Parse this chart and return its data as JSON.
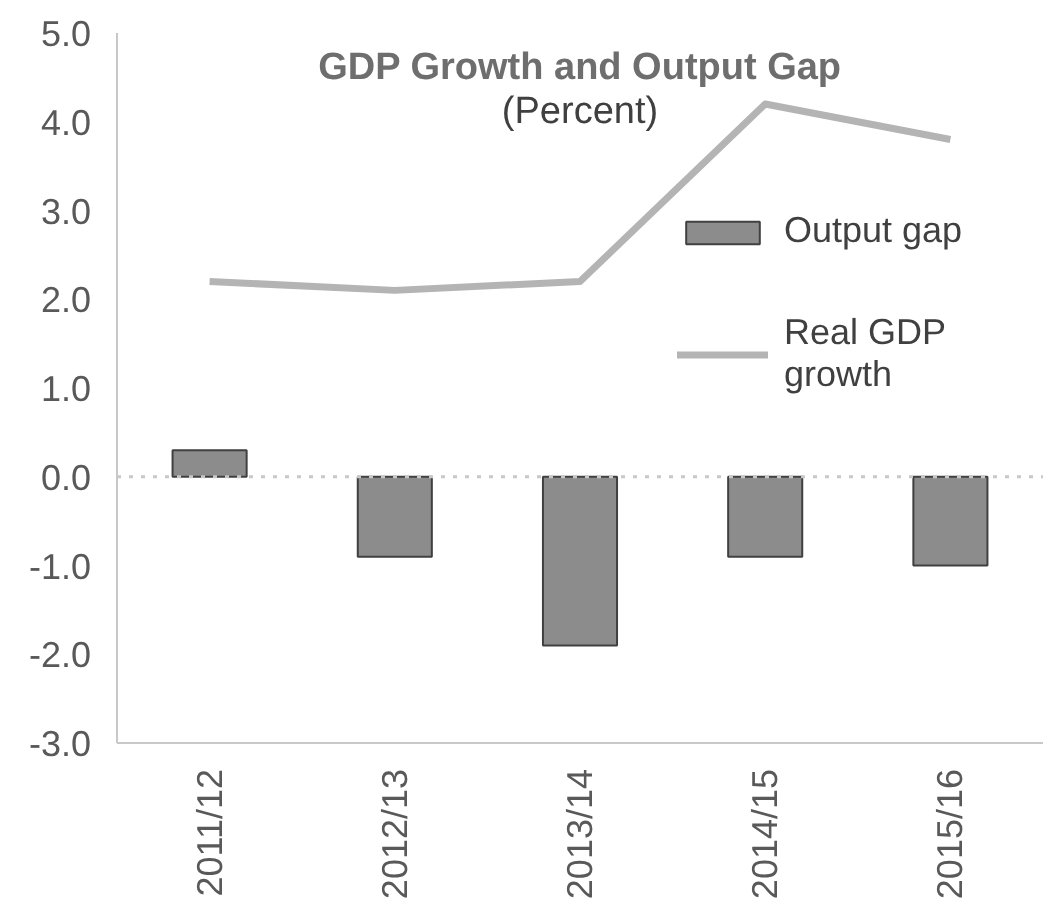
{
  "chart_data": {
    "type": "bar",
    "title": "GDP Growth and Output Gap",
    "subtitle": "(Percent)",
    "categories": [
      "2011/12",
      "2012/13",
      "2013/14",
      "2014/15",
      "2015/16"
    ],
    "series": [
      {
        "name": "Output gap",
        "color": "#8c8c8c",
        "values": [
          0.3,
          -0.9,
          -1.9,
          -0.9,
          -1.0
        ]
      },
      {
        "name": "Real GDP growth",
        "type": "line",
        "color": "#b4b4b4",
        "values": [
          2.2,
          2.1,
          2.2,
          4.2,
          3.8
        ]
      }
    ],
    "ylim": [
      -3,
      5
    ],
    "yticks": [
      {
        "value": 5,
        "label": "5.0"
      },
      {
        "value": 4,
        "label": "4.0"
      },
      {
        "value": 3,
        "label": "3.0"
      },
      {
        "value": 2,
        "label": "2.0"
      },
      {
        "value": 1,
        "label": "1.0"
      },
      {
        "value": 0,
        "label": "0.0"
      },
      {
        "value": -1,
        "label": "-1.0"
      },
      {
        "value": -2,
        "label": "-2.0"
      },
      {
        "value": -3,
        "label": "-3.0"
      }
    ],
    "ref_lines": [
      {
        "axis": "y",
        "value": 0,
        "color": "#c8c8c8",
        "line_style": "dotted"
      }
    ],
    "grid": false,
    "legend": "right"
  }
}
